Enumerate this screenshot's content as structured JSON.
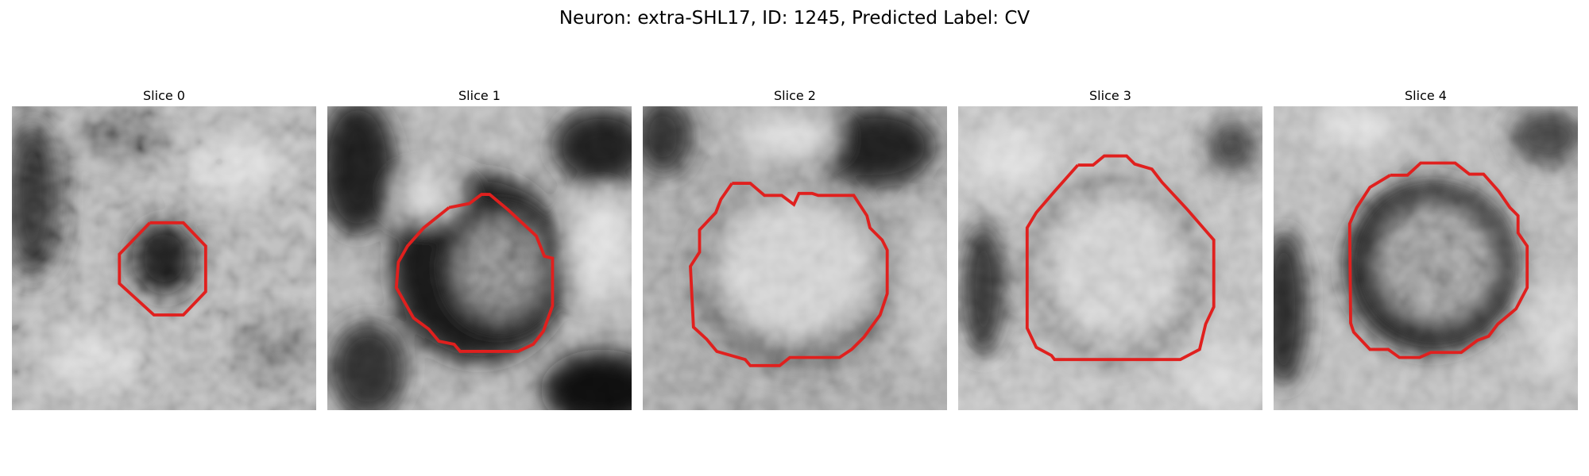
{
  "figure": {
    "title": "Neuron: extra-SHL17, ID: 1245, Predicted Label: CV"
  },
  "panels": [
    {
      "title": "Slice 0"
    },
    {
      "title": "Slice 1"
    },
    {
      "title": "Slice 2"
    },
    {
      "title": "Slice 3"
    },
    {
      "title": "Slice 4"
    }
  ],
  "colors": {
    "contour": "#e0201e",
    "background": "#ffffff",
    "text": "#000000"
  }
}
